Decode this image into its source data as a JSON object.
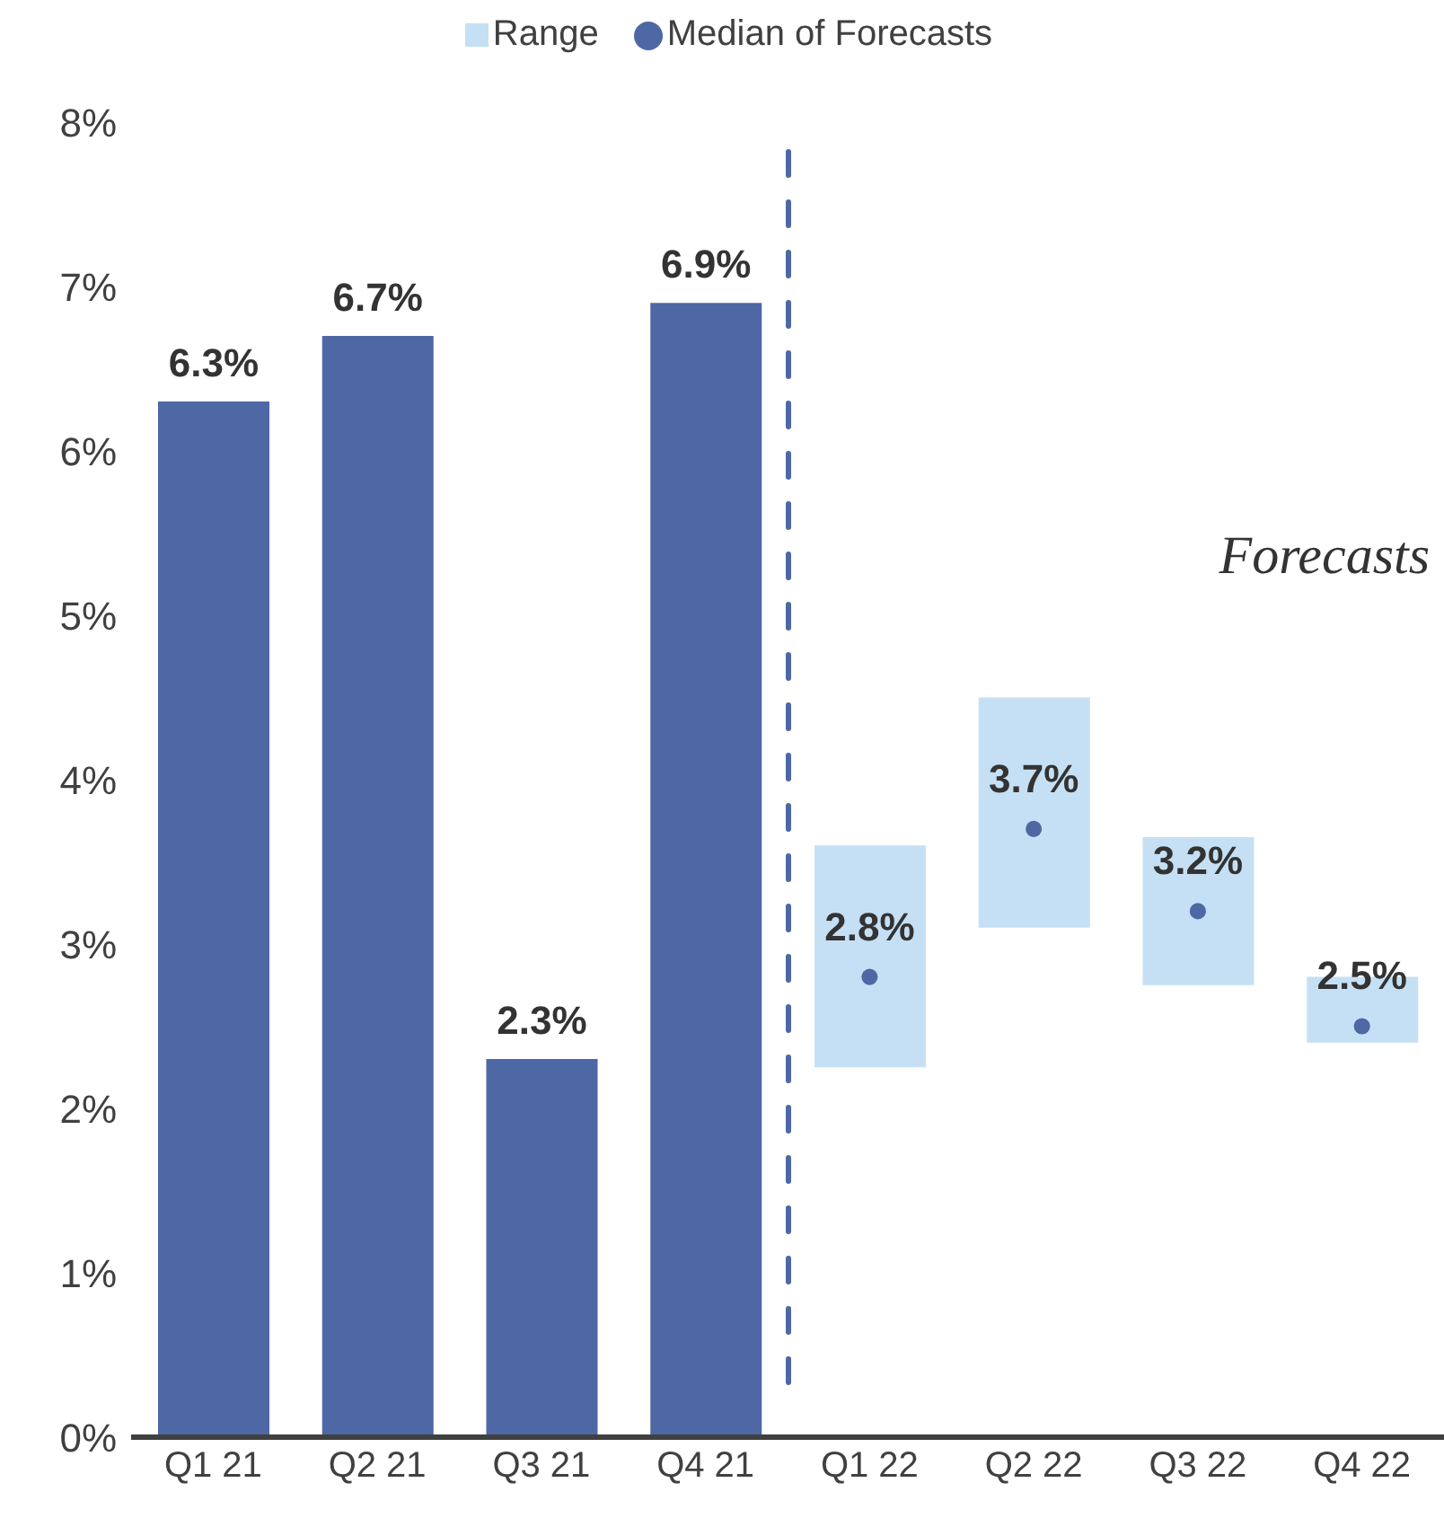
{
  "chart_data": {
    "type": "bar",
    "categories": [
      "Q1 21",
      "Q2 21",
      "Q3 21",
      "Q4 21",
      "Q1 22",
      "Q2 22",
      "Q3 22",
      "Q4 22"
    ],
    "series": [
      {
        "color": "#4e67a5",
        "values": [
          6.3,
          6.7,
          2.3,
          6.9,
          null,
          null,
          null,
          null
        ],
        "value_labels": [
          "6.3%",
          "6.7%",
          "2.3%",
          "6.9%",
          null,
          null,
          null,
          null
        ]
      },
      {
        "name": "Range",
        "color": "#c5e0f4",
        "base": [
          null,
          null,
          null,
          null,
          2.25,
          3.1,
          2.75,
          2.4
        ],
        "values": [
          null,
          null,
          null,
          null,
          1.35,
          1.4,
          0.9,
          0.4
        ]
      },
      {
        "type": "scatter",
        "name": "Median of Forecasts",
        "color": "#4e67a5",
        "values": [
          null,
          null,
          null,
          null,
          2.8,
          3.7,
          3.2,
          2.5
        ],
        "value_labels": [
          null,
          null,
          null,
          null,
          "2.8%",
          "3.7%",
          "3.2%",
          "2.5%"
        ]
      }
    ],
    "ylim": [
      0,
      8
    ],
    "yticks": [
      {
        "value": 0,
        "label": "0%"
      },
      {
        "value": 1,
        "label": "1%"
      },
      {
        "value": 2,
        "label": "2%"
      },
      {
        "value": 3,
        "label": "3%"
      },
      {
        "value": 4,
        "label": "4%"
      },
      {
        "value": 5,
        "label": "5%"
      },
      {
        "value": 6,
        "label": "6%"
      },
      {
        "value": 7,
        "label": "7%"
      },
      {
        "value": 8,
        "label": "8%"
      }
    ],
    "annotations": [
      "Forecasts"
    ],
    "legend": "top",
    "marker": "circle"
  }
}
